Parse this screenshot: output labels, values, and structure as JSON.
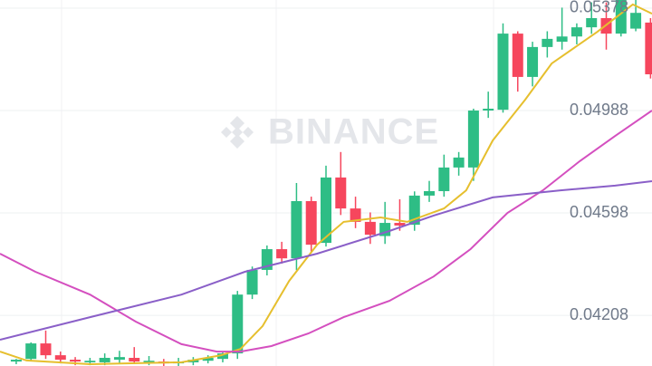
{
  "chart_data": {
    "type": "candlestick",
    "watermark": "BINANCE",
    "up_color": "#2ebd85",
    "down_color": "#f6465d",
    "ylim": [
      0.04015,
      0.05409
    ],
    "yticks": [
      0.05378,
      0.04988,
      0.04598,
      0.04208
    ],
    "grid": true,
    "xlim": [
      -1.1,
      43.1
    ],
    "series": [
      {
        "name": "open",
        "values": [
          0.04032,
          0.04042,
          0.04101,
          0.04056,
          0.04039,
          0.04029,
          0.04029,
          0.04039,
          0.04046,
          0.04029,
          0.04032,
          0.04025,
          0.04029,
          0.04035,
          0.04042,
          0.04063,
          0.04287,
          0.04381,
          0.0446,
          0.04425,
          0.04643,
          0.04484,
          0.04733,
          0.04615,
          0.04564,
          0.0451,
          0.0456,
          0.04553,
          0.04664,
          0.04681,
          0.04771,
          0.04771,
          0.04988,
          0.04991,
          0.05281,
          0.05116,
          0.0523,
          0.0525,
          0.0527,
          0.05305,
          0.0534,
          0.05281,
          0.053,
          0.05323
        ]
      },
      {
        "name": "high",
        "values": [
          0.04042,
          0.04105,
          0.0415,
          0.0407,
          0.04049,
          0.04046,
          0.04063,
          0.04073,
          0.04087,
          0.04053,
          0.04042,
          0.04046,
          0.04049,
          0.04056,
          0.0407,
          0.04301,
          0.04394,
          0.04474,
          0.04488,
          0.04712,
          0.0466,
          0.04778,
          0.0483,
          0.0466,
          0.046,
          0.0464,
          0.0465,
          0.0468,
          0.0472,
          0.0482,
          0.0483,
          0.04995,
          0.0506,
          0.0532,
          0.0529,
          0.0525,
          0.0529,
          0.0538,
          0.0532,
          0.054,
          0.054,
          0.05409,
          0.05409,
          0.0534
        ]
      },
      {
        "name": "low",
        "values": [
          0.04022,
          0.04035,
          0.04042,
          0.04025,
          0.04018,
          0.04018,
          0.04018,
          0.04025,
          0.04022,
          0.04018,
          0.04015,
          0.04015,
          0.04018,
          0.04025,
          0.04029,
          0.04042,
          0.0427,
          0.0436,
          0.04405,
          0.0438,
          0.0445,
          0.0447,
          0.0459,
          0.0454,
          0.0448,
          0.0448,
          0.0453,
          0.0453,
          0.0464,
          0.0466,
          0.0474,
          0.0472,
          0.0496,
          0.0498,
          0.0506,
          0.0508,
          0.0519,
          0.0522,
          0.0524,
          0.0528,
          0.0522,
          0.0527,
          0.0529,
          0.0511
        ]
      },
      {
        "name": "close",
        "values": [
          0.04039,
          0.04101,
          0.04056,
          0.04039,
          0.04032,
          0.04035,
          0.04046,
          0.04049,
          0.04032,
          0.04035,
          0.04025,
          0.04032,
          0.04039,
          0.04046,
          0.04063,
          0.04287,
          0.04381,
          0.0446,
          0.04425,
          0.04643,
          0.04477,
          0.04733,
          0.04615,
          0.04564,
          0.04515,
          0.0456,
          0.0455,
          0.04664,
          0.04681,
          0.04771,
          0.04809,
          0.04988,
          0.04995,
          0.05281,
          0.05116,
          0.0523,
          0.05261,
          0.0527,
          0.05305,
          0.0534,
          0.05281,
          0.05409,
          0.0536,
          0.05126
        ]
      }
    ],
    "lines": [
      {
        "color": "#e6bf2e",
        "x": [
          -1.1,
          0.7,
          5.0,
          11.2,
          13.9,
          15.2,
          16.7,
          18.5,
          20.4,
          22.2,
          24.7,
          26.5,
          29.0,
          30.5,
          32.3,
          34.5,
          36.3,
          39.4,
          41.8,
          43.1
        ],
        "values": [
          0.0407,
          0.04036,
          0.04022,
          0.04029,
          0.04056,
          0.0408,
          0.04167,
          0.04339,
          0.04477,
          0.04564,
          0.04581,
          0.04564,
          0.04615,
          0.04684,
          0.04874,
          0.05029,
          0.05167,
          0.05288,
          0.05392,
          0.05357
        ]
      },
      {
        "color": "#d44fbf",
        "x": [
          -1.1,
          1.3,
          5.0,
          8.1,
          11.2,
          13.6,
          15.2,
          17.3,
          19.8,
          22.2,
          25.3,
          28.3,
          30.8,
          33.3,
          35.7,
          38.2,
          40.6,
          43.1
        ],
        "values": [
          0.04443,
          0.04374,
          0.04287,
          0.04184,
          0.04098,
          0.0407,
          0.0407,
          0.04091,
          0.04139,
          0.04201,
          0.04263,
          0.04356,
          0.0446,
          0.04598,
          0.04684,
          0.04795,
          0.04891,
          0.04988
        ]
      },
      {
        "color": "#8a5fc8",
        "x": [
          -1.1,
          5.0,
          11.2,
          15.5,
          20.4,
          25.3,
          28.3,
          32.3,
          36.9,
          40.6,
          43.1
        ],
        "values": [
          0.04115,
          0.04201,
          0.04287,
          0.04374,
          0.04443,
          0.04529,
          0.04588,
          0.04657,
          0.04684,
          0.04702,
          0.04719
        ]
      }
    ]
  }
}
